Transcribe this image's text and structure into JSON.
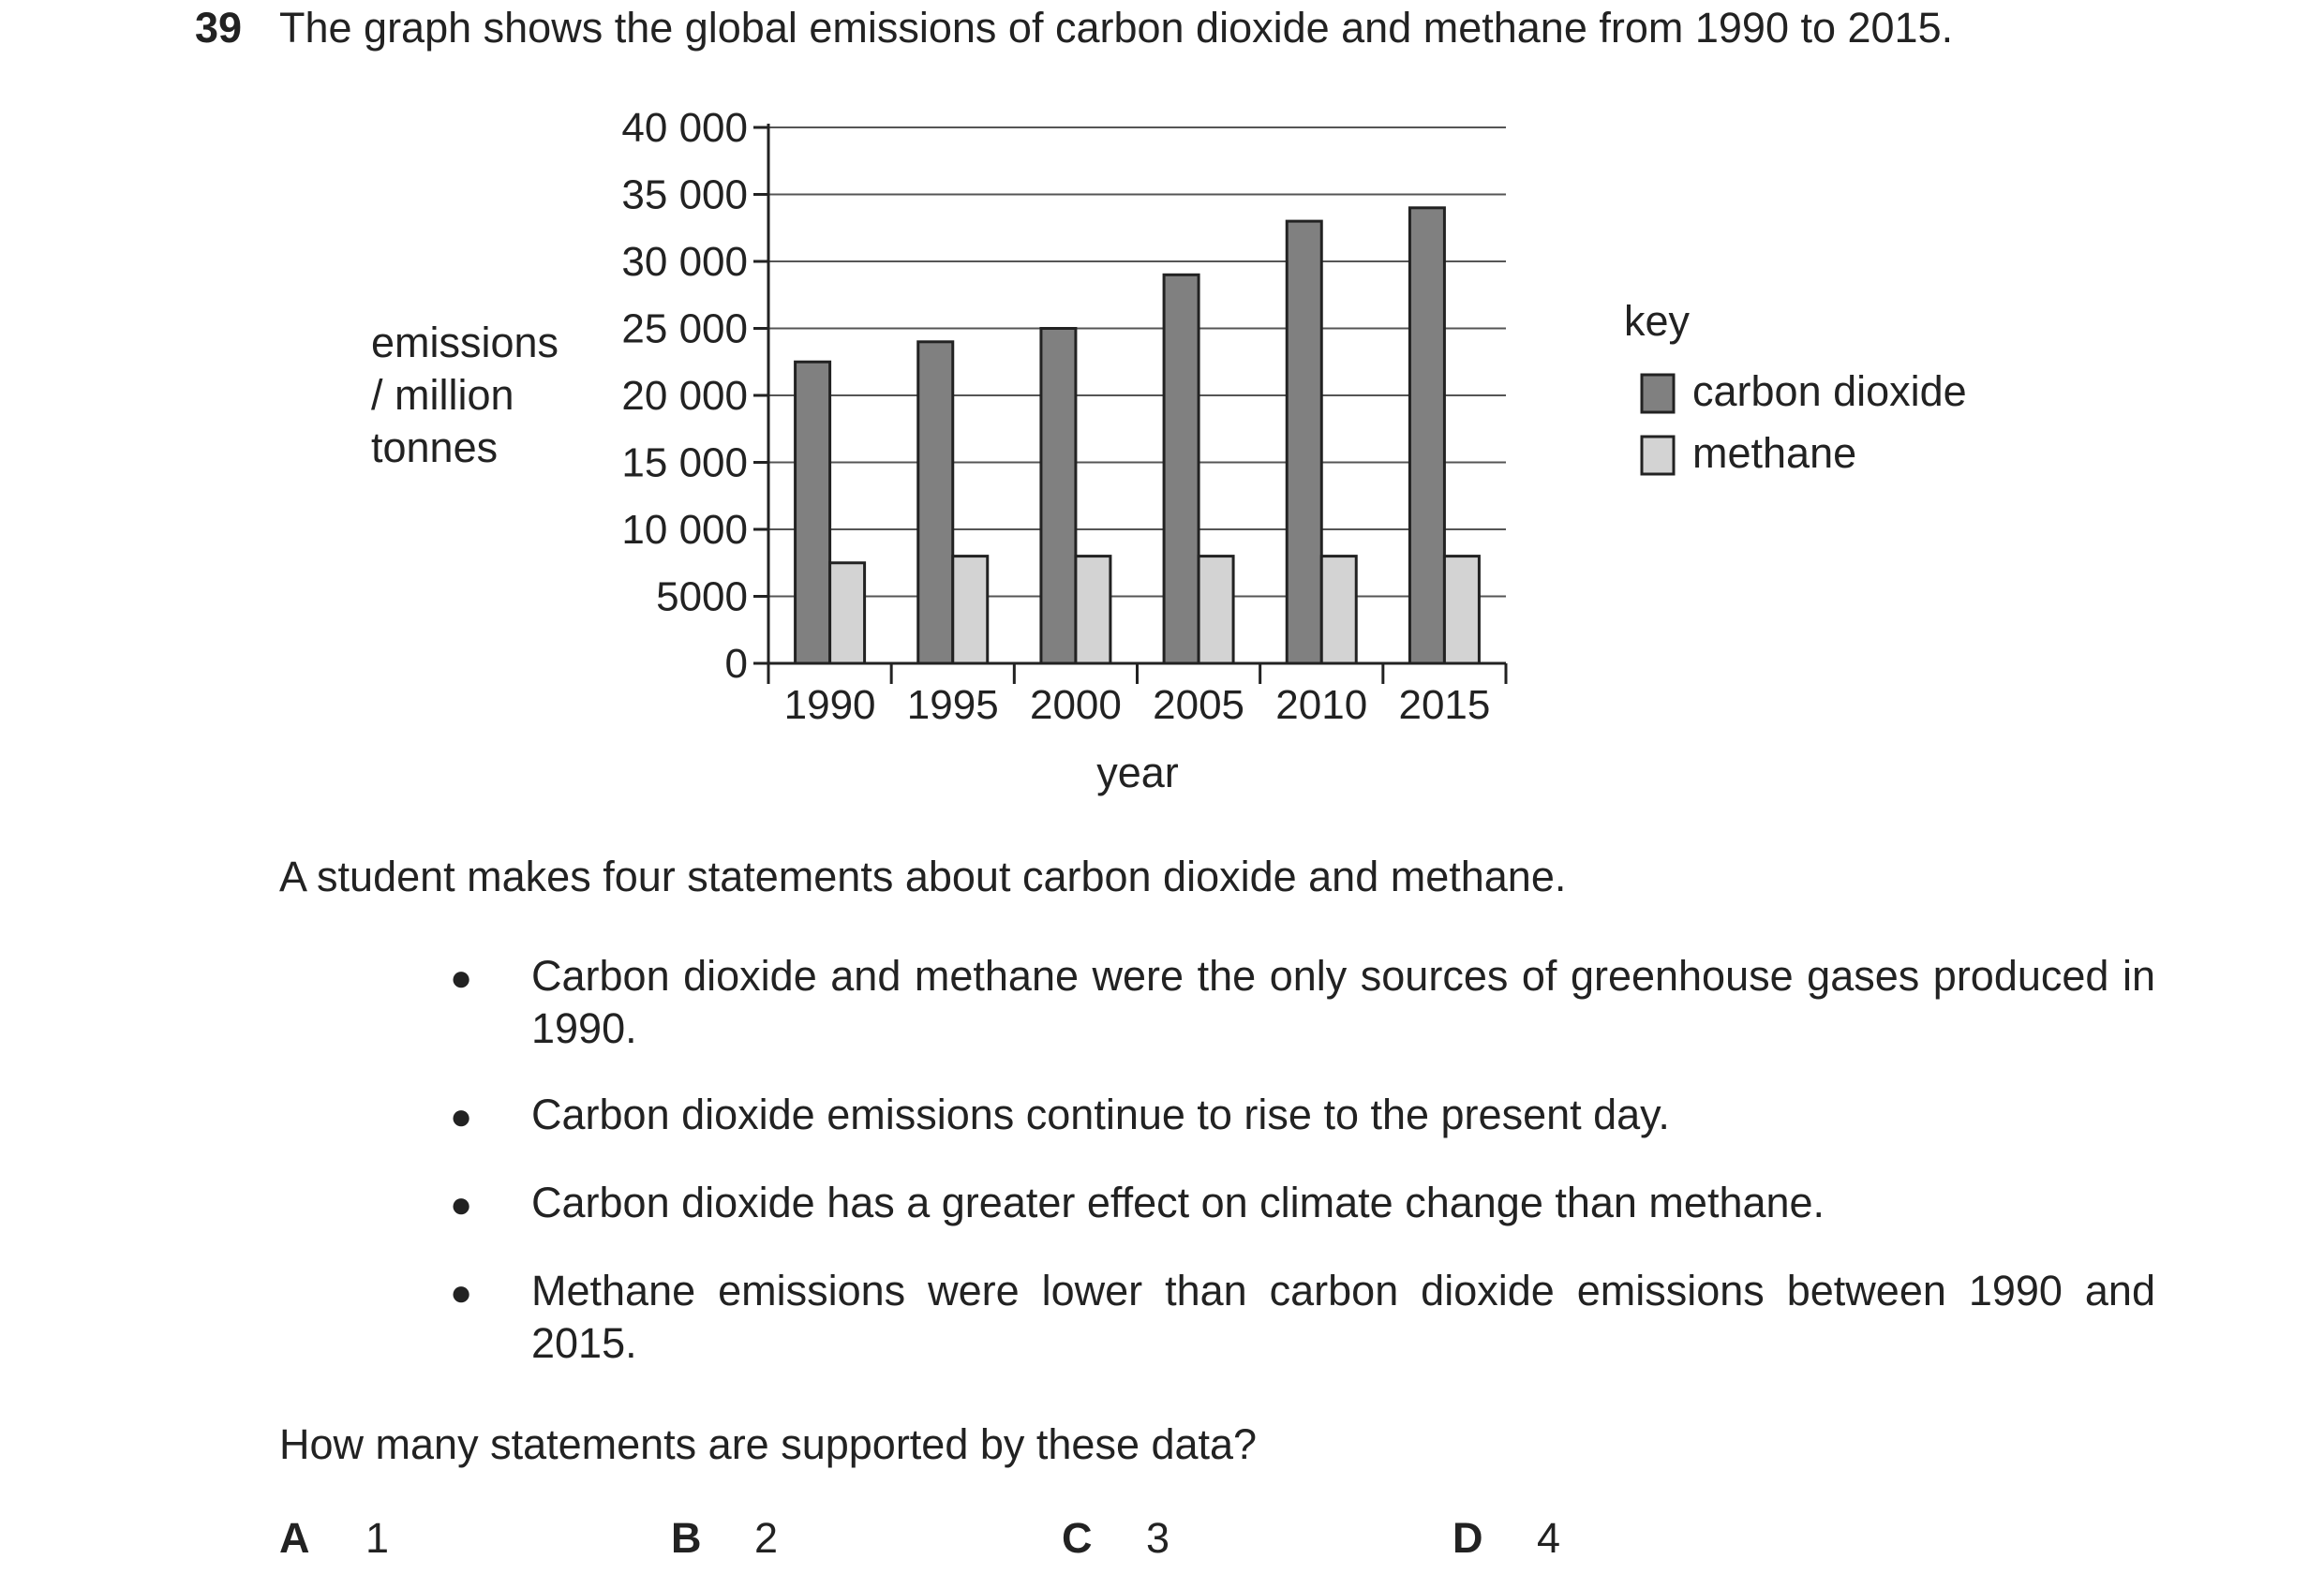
{
  "question": {
    "number": "39",
    "text": "The graph shows the global emissions of carbon dioxide and methane from 1990 to 2015."
  },
  "chart_data": {
    "type": "bar",
    "categories": [
      "1990",
      "1995",
      "2000",
      "2005",
      "2010",
      "2015"
    ],
    "series": [
      {
        "name": "carbon dioxide",
        "values": [
          22500,
          24000,
          25000,
          29000,
          33000,
          34000
        ],
        "color": "#808080"
      },
      {
        "name": "methane",
        "values": [
          7500,
          8000,
          8000,
          8000,
          8000,
          8000
        ],
        "color": "#d3d3d3"
      }
    ],
    "y_ticks": [
      "0",
      "5000",
      "10 000",
      "15 000",
      "20 000",
      "25 000",
      "30 000",
      "35 000",
      "40 000"
    ],
    "ylim": [
      0,
      40000
    ],
    "ylabel": [
      "emissions",
      "/ million",
      "tonnes"
    ],
    "xlabel": "year",
    "legend_title": "key",
    "legend_position": "right",
    "grid": true
  },
  "intro": "A student makes four statements about carbon dioxide and methane.",
  "statements": [
    {
      "bullet": "●",
      "text": "Carbon dioxide and methane were the only sources of greenhouse gases produced in 1990."
    },
    {
      "bullet": "●",
      "text": "Carbon dioxide emissions continue to rise to the present day."
    },
    {
      "bullet": "●",
      "text": "Carbon dioxide has a greater effect on climate change than methane."
    },
    {
      "bullet": "●",
      "text": "Methane emissions were lower than carbon dioxide emissions between 1990 and 2015."
    }
  ],
  "prompt": "How many statements are supported by these data?",
  "options": [
    {
      "letter": "A",
      "value": "1"
    },
    {
      "letter": "B",
      "value": "2"
    },
    {
      "letter": "C",
      "value": "3"
    },
    {
      "letter": "D",
      "value": "4"
    }
  ]
}
